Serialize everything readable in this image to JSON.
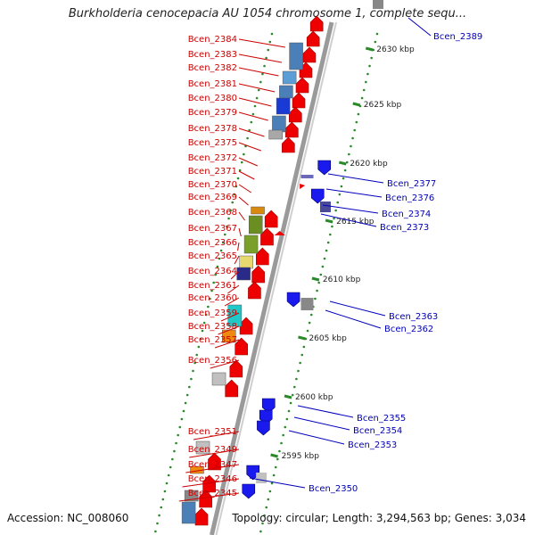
{
  "title": "Burkholderia cenocepacia AU 1054 chromosome 1, complete sequ...",
  "accession": "Accession: NC_008060",
  "topology": "Topology: circular; Length: 3,294,563 bp; Genes: 3,034",
  "colors": {
    "backbone": "#9a9a9a",
    "left_label": "#cc0000",
    "right_label": "#0000bb",
    "forward_gene": "#ee0000",
    "reverse_gene": "#1a1aee",
    "tick_dots": "#2a8a2a",
    "kbp_text": "#222222"
  },
  "kbp_ticks": [
    "2630 kbp",
    "2625 kbp",
    "2620 kbp",
    "2615 kbp",
    "2610 kbp",
    "2605 kbp",
    "2600 kbp",
    "2595 kbp"
  ],
  "left_genes": [
    "Bcen_2384",
    "Bcen_2383",
    "Bcen_2382",
    "Bcen_2381",
    "Bcen_2380",
    "Bcen_2379",
    "Bcen_2378",
    "Bcen_2375",
    "Bcen_2372",
    "Bcen_2371",
    "Bcen_2370",
    "Bcen_2369",
    "Bcen_2368",
    "Bcen_2367",
    "Bcen_2366",
    "Bcen_2365",
    "Bcen_2364",
    "Bcen_2361",
    "Bcen_2360",
    "Bcen_2359",
    "Bcen_2358",
    "Bcen_2357",
    "Bcen_2356",
    "Bcen_2351",
    "Bcen_2349",
    "Bcen_2347",
    "Bcen_2346",
    "Bcen_2345"
  ],
  "right_genes": [
    "Bcen_2389",
    "Bcen_2377",
    "Bcen_2376",
    "Bcen_2374",
    "Bcen_2373",
    "Bcen_2363",
    "Bcen_2362",
    "Bcen_2355",
    "Bcen_2354",
    "Bcen_2353",
    "Bcen_2350"
  ]
}
